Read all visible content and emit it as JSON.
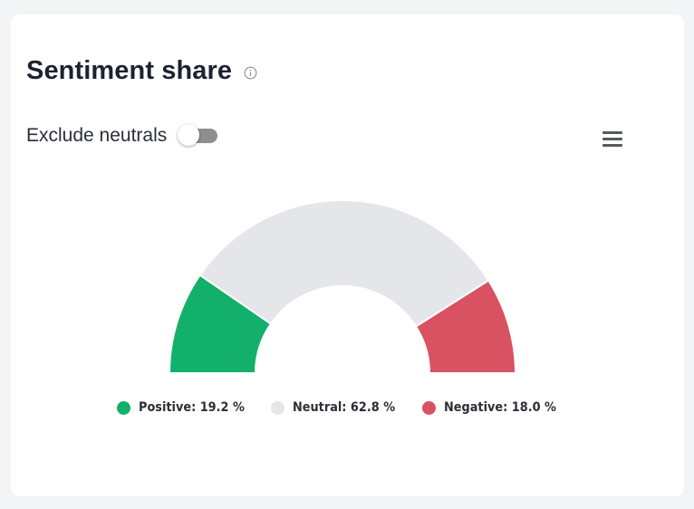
{
  "card": {
    "title": "Sentiment share",
    "info_icon": "info-circle-icon",
    "toggle_label": "Exclude neutrals",
    "toggle_on": false,
    "menu_icon": "hamburger-menu-icon"
  },
  "legend": [
    {
      "label": "Positive: 19.2 %",
      "color": "#12b06b"
    },
    {
      "label": "Neutral: 62.8 %",
      "color": "#e4e6ea"
    },
    {
      "label": "Negative: 18.0 %",
      "color": "#d95262"
    }
  ],
  "chart_data": {
    "type": "pie",
    "variant": "semi-donut",
    "categories": [
      "Positive",
      "Neutral",
      "Negative"
    ],
    "values": [
      19.2,
      62.8,
      18.0
    ],
    "unit": "%",
    "colors": [
      "#12b06b",
      "#e4e6ea",
      "#d95262"
    ],
    "legend_position": "bottom"
  }
}
